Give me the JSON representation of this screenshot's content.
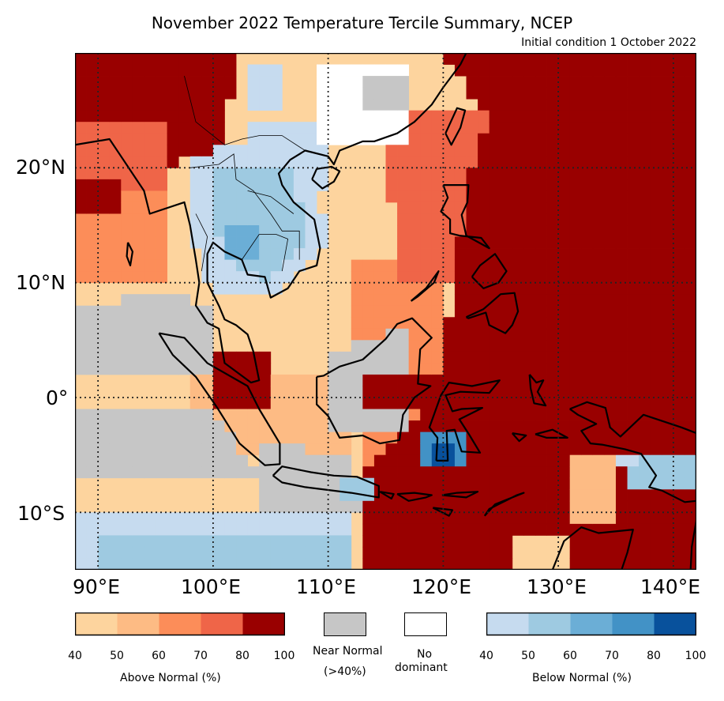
{
  "title": "November 2022 Temperature Tercile Summary, NCEP",
  "subtitle": "Initial condition 1 October 2022",
  "map": {
    "lon_range": [
      88,
      142
    ],
    "lat_range": [
      -15,
      30
    ],
    "lon_ticks": [
      "90°E",
      "100°E",
      "110°E",
      "120°E",
      "130°E",
      "140°E"
    ],
    "lat_ticks": [
      "20°N",
      "10°N",
      "0°",
      "10°S"
    ],
    "gridlines": "dotted",
    "colors": {
      "above_40_50": "#fdd49e",
      "above_50_60": "#fdbb84",
      "above_60_70": "#fc8d59",
      "above_70_80": "#ef6548",
      "above_80_100": "#990000",
      "near_normal": "#c6c6c6",
      "no_dominant": "#ffffff",
      "below_40_50": "#c6dbef",
      "below_50_60": "#9ecae1",
      "below_60_70": "#6baed6",
      "below_70_80": "#4292c6",
      "below_80_100": "#08519c",
      "coastline": "#000000"
    }
  },
  "legend": {
    "above": {
      "title": "Above Normal (%)",
      "ticks": [
        "40",
        "50",
        "60",
        "70",
        "80",
        "100"
      ],
      "colors": [
        "#fdd49e",
        "#fdbb84",
        "#fc8d59",
        "#ef6548",
        "#990000"
      ]
    },
    "near_normal": {
      "line1": "Near Normal",
      "line2": "(>40%)",
      "color": "#c6c6c6"
    },
    "no_dominant": {
      "line1": "No",
      "line2": "dominant",
      "color": "#ffffff"
    },
    "below": {
      "title": "Below Normal (%)",
      "ticks": [
        "40",
        "50",
        "60",
        "70",
        "80",
        "100"
      ],
      "colors": [
        "#c6dbef",
        "#9ecae1",
        "#6baed6",
        "#4292c6",
        "#08519c"
      ]
    }
  }
}
